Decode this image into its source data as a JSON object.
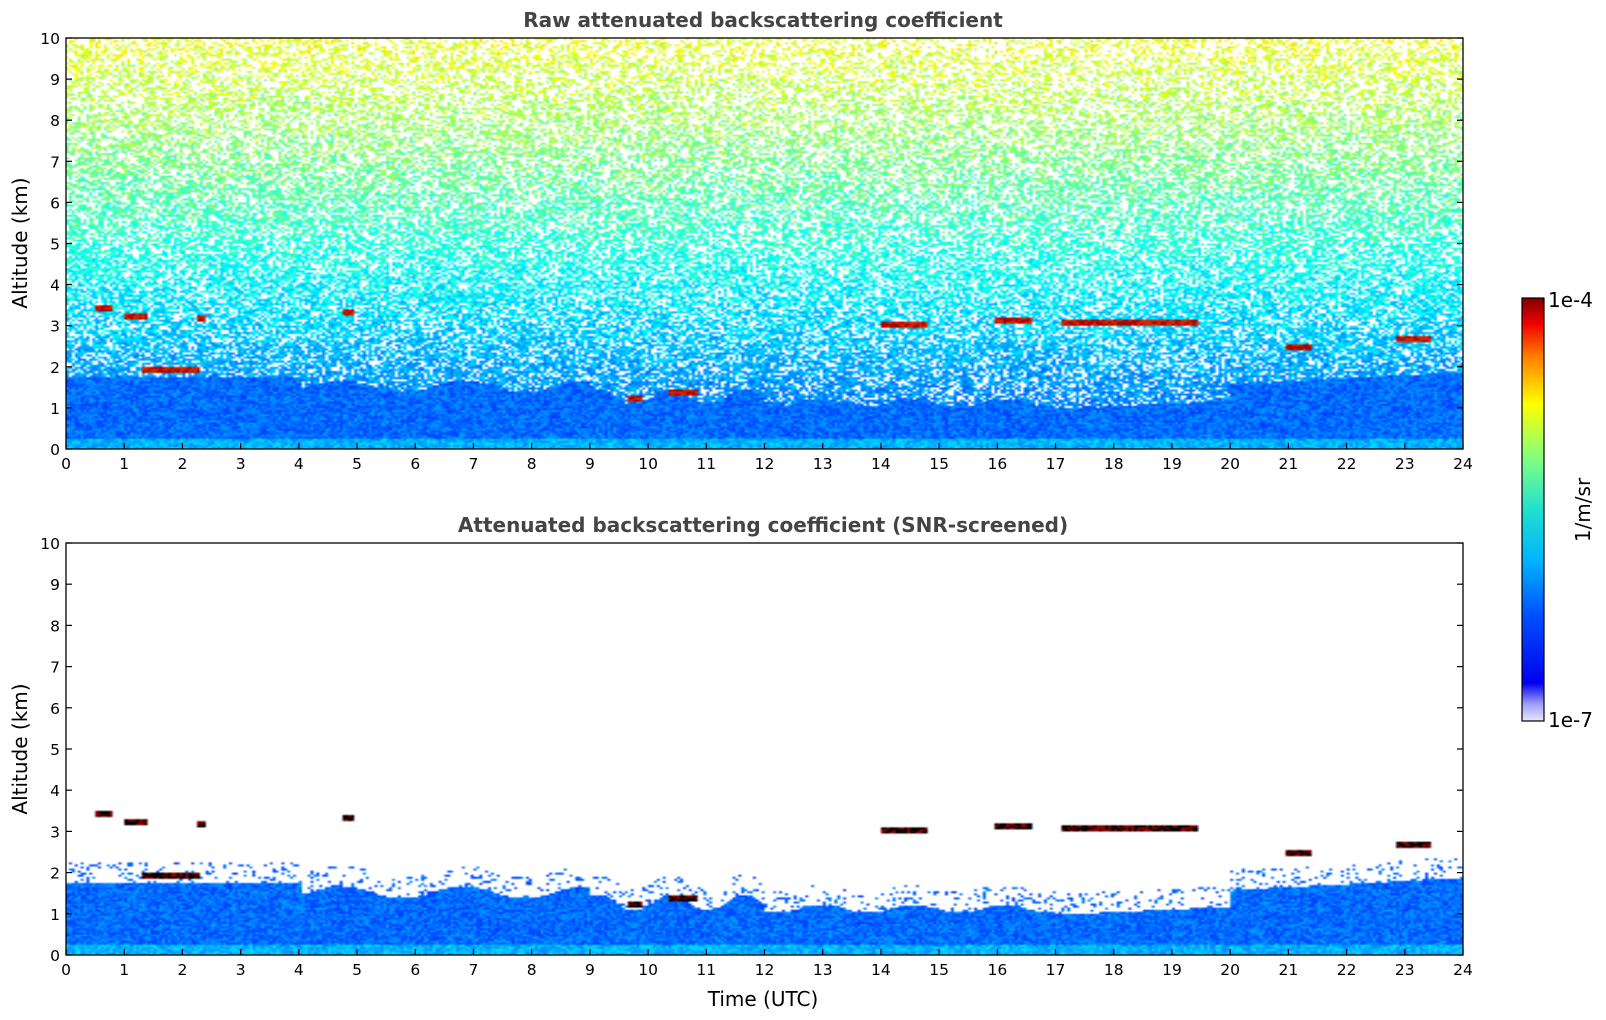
{
  "chart_data": [
    {
      "type": "heatmap",
      "title": "Raw attenuated backscattering coefficient",
      "xlabel": "",
      "ylabel": "Altitude (km)",
      "xlim": [
        0,
        24
      ],
      "ylim": [
        0,
        10
      ],
      "xticks": [
        0,
        1,
        2,
        3,
        4,
        5,
        6,
        7,
        8,
        9,
        10,
        11,
        12,
        13,
        14,
        15,
        16,
        17,
        18,
        19,
        20,
        21,
        22,
        23,
        24
      ],
      "yticks": [
        0,
        1,
        2,
        3,
        4,
        5,
        6,
        7,
        8,
        9,
        10
      ],
      "screened": false,
      "cloud_layers": [
        {
          "t0": 0.5,
          "t1": 0.75,
          "alt": 3.45
        },
        {
          "t0": 1.0,
          "t1": 1.35,
          "alt": 3.25
        },
        {
          "t0": 1.3,
          "t1": 2.3,
          "alt": 1.95
        },
        {
          "t0": 2.2,
          "t1": 2.35,
          "alt": 3.2
        },
        {
          "t0": 4.75,
          "t1": 4.9,
          "alt": 3.35
        },
        {
          "t0": 9.65,
          "t1": 9.85,
          "alt": 1.25
        },
        {
          "t0": 10.3,
          "t1": 10.8,
          "alt": 1.4
        },
        {
          "t0": 14.0,
          "t1": 14.75,
          "alt": 3.05
        },
        {
          "t0": 15.95,
          "t1": 16.55,
          "alt": 3.15
        },
        {
          "t0": 17.1,
          "t1": 19.4,
          "alt": 3.1
        },
        {
          "t0": 20.95,
          "t1": 21.35,
          "alt": 2.5
        },
        {
          "t0": 22.8,
          "t1": 23.4,
          "alt": 2.7
        }
      ]
    },
    {
      "type": "heatmap",
      "title": "Attenuated backscattering coefficient (SNR-screened)",
      "xlabel": "Time (UTC)",
      "ylabel": "Altitude (km)",
      "xlim": [
        0,
        24
      ],
      "ylim": [
        0,
        10
      ],
      "xticks": [
        0,
        1,
        2,
        3,
        4,
        5,
        6,
        7,
        8,
        9,
        10,
        11,
        12,
        13,
        14,
        15,
        16,
        17,
        18,
        19,
        20,
        21,
        22,
        23,
        24
      ],
      "yticks": [
        0,
        1,
        2,
        3,
        4,
        5,
        6,
        7,
        8,
        9,
        10
      ],
      "screened": true,
      "cloud_layers": [
        {
          "t0": 0.5,
          "t1": 0.75,
          "alt": 3.45
        },
        {
          "t0": 1.0,
          "t1": 1.35,
          "alt": 3.25
        },
        {
          "t0": 1.3,
          "t1": 2.3,
          "alt": 1.95
        },
        {
          "t0": 2.2,
          "t1": 2.35,
          "alt": 3.2
        },
        {
          "t0": 4.75,
          "t1": 4.9,
          "alt": 3.35
        },
        {
          "t0": 9.65,
          "t1": 9.85,
          "alt": 1.25
        },
        {
          "t0": 10.3,
          "t1": 10.8,
          "alt": 1.4
        },
        {
          "t0": 14.0,
          "t1": 14.75,
          "alt": 3.05
        },
        {
          "t0": 15.95,
          "t1": 16.55,
          "alt": 3.15
        },
        {
          "t0": 17.1,
          "t1": 19.4,
          "alt": 3.1
        },
        {
          "t0": 20.95,
          "t1": 21.35,
          "alt": 2.5
        },
        {
          "t0": 22.8,
          "t1": 23.4,
          "alt": 2.7
        }
      ]
    }
  ],
  "colorbar": {
    "max_label": "1e-4",
    "min_label": "1e-7",
    "units_label": "1/m/sr",
    "colormap": "jet"
  }
}
